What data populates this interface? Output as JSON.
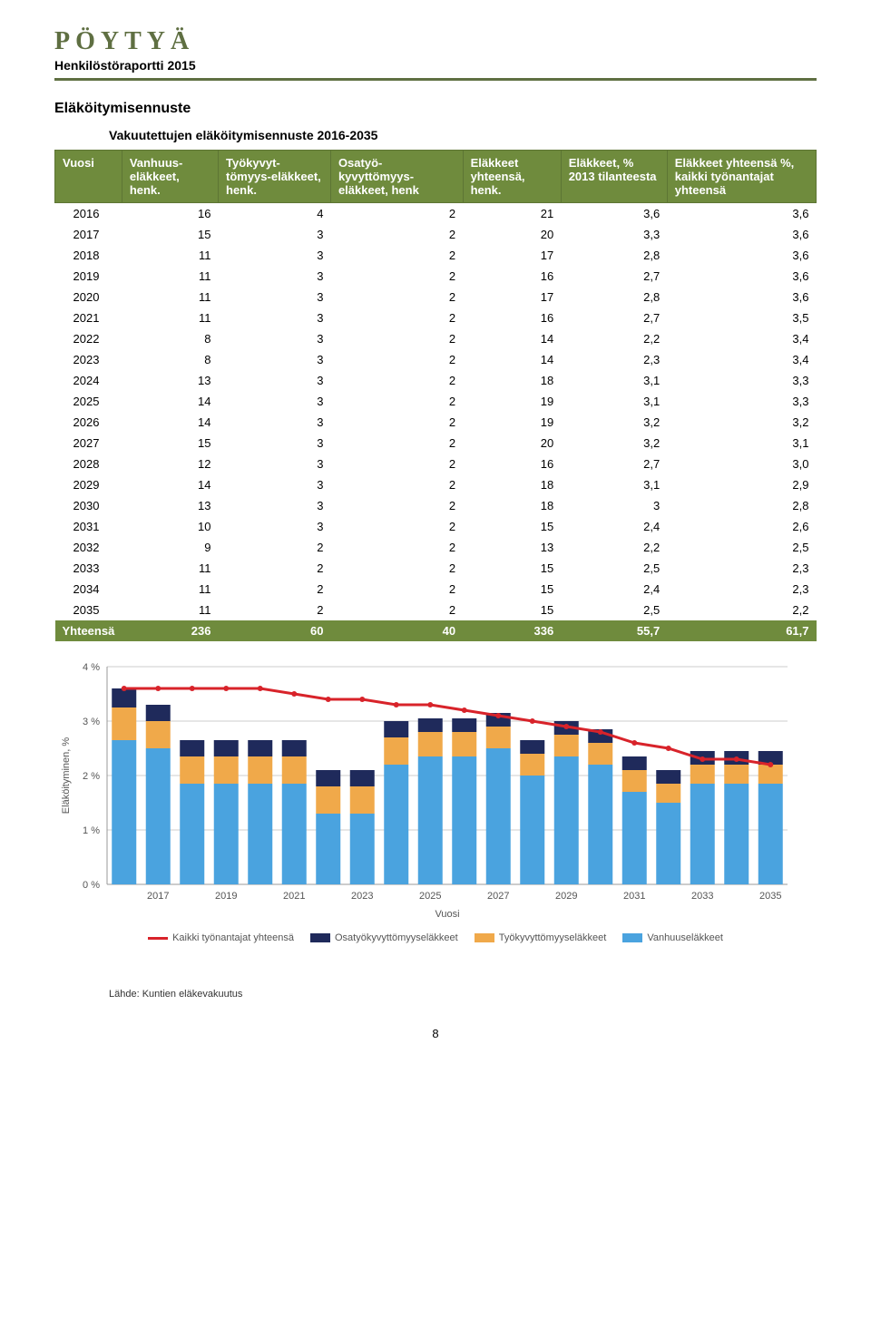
{
  "header": {
    "logo_text": "PÖYTYÄ",
    "subtitle": "Henkilöstöraportti 2015"
  },
  "section": {
    "heading": "Eläköitymisennuste",
    "subheading": "Vakuutettujen eläköitymisennuste 2016-2035"
  },
  "table": {
    "columns": [
      "Vuosi",
      "Vanhuus-eläkkeet, henk.",
      "Työkyvyt-tömyys-eläkkeet, henk.",
      "Osatyö-kyvyttömyys-eläkkeet, henk",
      "Eläkkeet yhteensä, henk.",
      "Eläkkeet, % 2013 tilanteesta",
      "Eläkkeet yhteensä %, kaikki työnantajat yhteensä"
    ],
    "rows": [
      [
        "2016",
        "16",
        "4",
        "2",
        "21",
        "3,6",
        "3,6"
      ],
      [
        "2017",
        "15",
        "3",
        "2",
        "20",
        "3,3",
        "3,6"
      ],
      [
        "2018",
        "11",
        "3",
        "2",
        "17",
        "2,8",
        "3,6"
      ],
      [
        "2019",
        "11",
        "3",
        "2",
        "16",
        "2,7",
        "3,6"
      ],
      [
        "2020",
        "11",
        "3",
        "2",
        "17",
        "2,8",
        "3,6"
      ],
      [
        "2021",
        "11",
        "3",
        "2",
        "16",
        "2,7",
        "3,5"
      ],
      [
        "2022",
        "8",
        "3",
        "2",
        "14",
        "2,2",
        "3,4"
      ],
      [
        "2023",
        "8",
        "3",
        "2",
        "14",
        "2,3",
        "3,4"
      ],
      [
        "2024",
        "13",
        "3",
        "2",
        "18",
        "3,1",
        "3,3"
      ],
      [
        "2025",
        "14",
        "3",
        "2",
        "19",
        "3,1",
        "3,3"
      ],
      [
        "2026",
        "14",
        "3",
        "2",
        "19",
        "3,2",
        "3,2"
      ],
      [
        "2027",
        "15",
        "3",
        "2",
        "20",
        "3,2",
        "3,1"
      ],
      [
        "2028",
        "12",
        "3",
        "2",
        "16",
        "2,7",
        "3,0"
      ],
      [
        "2029",
        "14",
        "3",
        "2",
        "18",
        "3,1",
        "2,9"
      ],
      [
        "2030",
        "13",
        "3",
        "2",
        "18",
        "3",
        "2,8"
      ],
      [
        "2031",
        "10",
        "3",
        "2",
        "15",
        "2,4",
        "2,6"
      ],
      [
        "2032",
        "9",
        "2",
        "2",
        "13",
        "2,2",
        "2,5"
      ],
      [
        "2033",
        "11",
        "2",
        "2",
        "15",
        "2,5",
        "2,3"
      ],
      [
        "2034",
        "11",
        "2",
        "2",
        "15",
        "2,4",
        "2,3"
      ],
      [
        "2035",
        "11",
        "2",
        "2",
        "15",
        "2,5",
        "2,2"
      ]
    ],
    "summary": [
      "Yhteensä",
      "236",
      "60",
      "40",
      "336",
      "55,7",
      "61,7"
    ]
  },
  "chart": {
    "type": "stacked-bar-with-line",
    "x_categories": [
      "2017",
      "2019",
      "2021",
      "2023",
      "2025",
      "2027",
      "2029",
      "2031",
      "2033",
      "2035"
    ],
    "x_label": "Vuosi",
    "y_label": "Eläköityminen, %",
    "y_ticks": [
      "0 %",
      "1 %",
      "2 %",
      "3 %",
      "4 %"
    ],
    "ylim": [
      0,
      4
    ],
    "series_bottom": {
      "name": "Vanhuuseläkkeet",
      "color": "#4aa3df",
      "values": [
        2.65,
        2.5,
        1.85,
        1.85,
        1.85,
        1.85,
        1.3,
        1.3,
        2.2,
        2.35,
        2.35,
        2.5,
        2.0,
        2.35,
        2.2,
        1.7,
        1.5,
        1.85,
        1.85,
        1.85
      ]
    },
    "series_middle": {
      "name": "Työkyvyttömyyseläkkeet",
      "color": "#f0a94a",
      "values": [
        0.6,
        0.5,
        0.5,
        0.5,
        0.5,
        0.5,
        0.5,
        0.5,
        0.5,
        0.45,
        0.45,
        0.4,
        0.4,
        0.4,
        0.4,
        0.4,
        0.35,
        0.35,
        0.35,
        0.35
      ]
    },
    "series_top": {
      "name": "Osatyökyvyttömyyseläkkeet",
      "color": "#1f2a5b",
      "values": [
        0.35,
        0.3,
        0.3,
        0.3,
        0.3,
        0.3,
        0.3,
        0.3,
        0.3,
        0.25,
        0.25,
        0.25,
        0.25,
        0.25,
        0.25,
        0.25,
        0.25,
        0.25,
        0.25,
        0.25
      ]
    },
    "line": {
      "name": "Kaikki työnantajat yhteensä",
      "color": "#d8232a",
      "values": [
        3.6,
        3.6,
        3.6,
        3.6,
        3.6,
        3.5,
        3.4,
        3.4,
        3.3,
        3.3,
        3.2,
        3.1,
        3.0,
        2.9,
        2.8,
        2.6,
        2.5,
        2.3,
        2.3,
        2.2
      ]
    },
    "background_color": "#ffffff",
    "grid_color": "#cccccc",
    "legend": [
      "Kaikki työnantajat yhteensä",
      "Osatyökyvyttömyyseläkkeet",
      "Työkyvyttömyyseläkkeet",
      "Vanhuuseläkkeet"
    ]
  },
  "source_note": "Lähde: Kuntien eläkevakuutus",
  "page_number": "8"
}
